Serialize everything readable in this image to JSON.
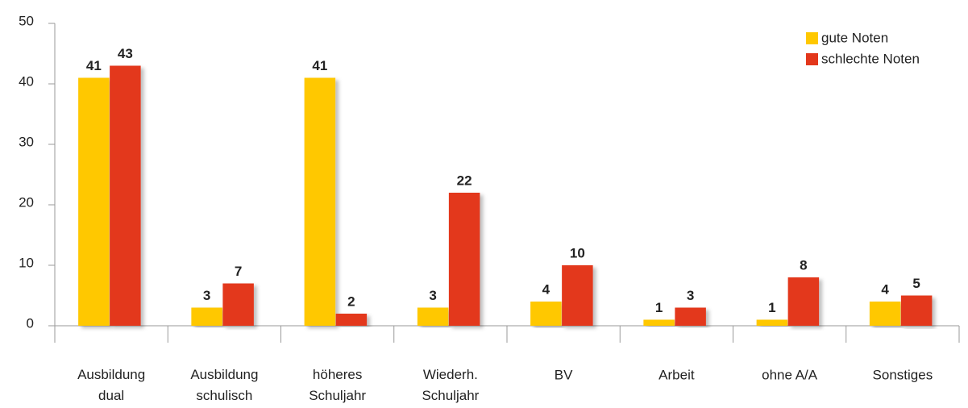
{
  "chart_data": {
    "type": "bar",
    "categories": [
      "Ausbildung\ndual",
      "Ausbildung\nschulisch",
      "höheres\nSchuljahr",
      "Wiederh.\nSchuljahr",
      "BV",
      "Arbeit",
      "ohne A/A",
      "Sonstiges"
    ],
    "series": [
      {
        "name": "gute Noten",
        "color": "#ffc800",
        "values": [
          41,
          3,
          41,
          3,
          4,
          1,
          1,
          4
        ]
      },
      {
        "name": "schlechte Noten",
        "color": "#e3371b",
        "values": [
          43,
          7,
          2,
          22,
          10,
          3,
          8,
          5
        ]
      }
    ],
    "ylim": [
      0,
      50
    ],
    "yticks": [
      0,
      10,
      20,
      30,
      40,
      50
    ],
    "legend": "top-right"
  }
}
